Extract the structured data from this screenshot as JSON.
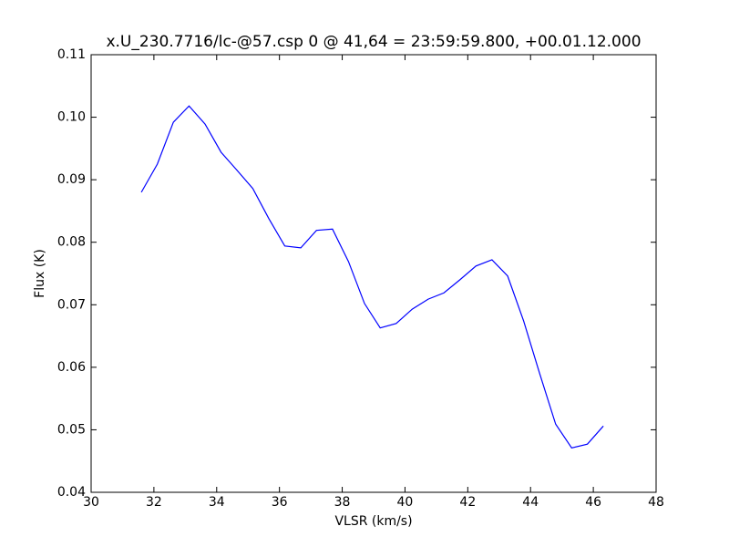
{
  "chart_data": {
    "type": "line",
    "title": "x.U_230.7716/lc-@57.csp 0 @ 41,64 = 23:59:59.800, +00.01.12.000",
    "x_label": "VLSR (km/s)",
    "y_label": "Flux (K)",
    "x": [
      31.6,
      32.11,
      32.62,
      33.12,
      33.63,
      34.14,
      34.65,
      35.15,
      35.66,
      36.17,
      36.68,
      37.18,
      37.69,
      38.2,
      38.71,
      39.21,
      39.72,
      40.23,
      40.74,
      41.24,
      41.75,
      42.26,
      42.77,
      43.27,
      43.78,
      44.29,
      44.8,
      45.31,
      45.81,
      46.32
    ],
    "series": [
      {
        "color": "#0000ff",
        "values": [
          0.088,
          0.0925,
          0.0992,
          0.1018,
          0.0989,
          0.0944,
          0.0915,
          0.0886,
          0.0838,
          0.0794,
          0.0791,
          0.0819,
          0.0821,
          0.0769,
          0.0702,
          0.0663,
          0.067,
          0.0693,
          0.0709,
          0.0719,
          0.074,
          0.0762,
          0.0772,
          0.0746,
          0.0674,
          0.059,
          0.0509,
          0.0471,
          0.0477,
          0.0506
        ]
      }
    ],
    "xlim": [
      30,
      48
    ],
    "xticks": [
      30,
      32,
      34,
      36,
      38,
      40,
      42,
      44,
      46,
      48
    ],
    "ylim": [
      0.04,
      0.11
    ],
    "yticks": [
      0.04,
      0.05,
      0.06,
      0.07,
      0.08,
      0.09,
      {
        "value": 0.1,
        "label": "0.10"
      },
      0.11
    ]
  }
}
